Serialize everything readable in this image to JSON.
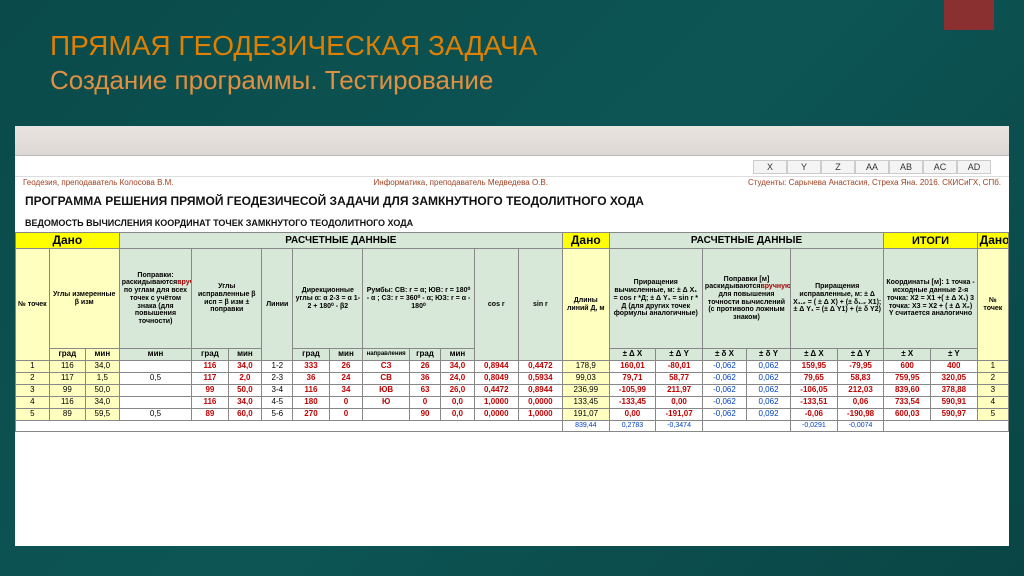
{
  "slide": {
    "title1": "ПРЯМАЯ ГЕОДЕЗИЧЕСКАЯ ЗАДАЧА",
    "title2": "Создание программы. Тестирование"
  },
  "cols": [
    "X",
    "Y",
    "Z",
    "AA",
    "AB",
    "AC",
    "AD"
  ],
  "credits": {
    "left": "Геодезия,  преподаватель Колосова В.М.",
    "mid": "Информатика,  преподаватель Медведева О.В.",
    "right": "Студенты: Сарычева Анастасия, Стреха Яна. 2016. СКИСиГХ, СПб."
  },
  "prog_title": "ПРОГРАММА  РЕШЕНИЯ ПРЯМОЙ ГЕОДЕЗИЧЕСОЙ ЗАДАЧИ ДЛЯ ЗАМКНУТНОГО ТЕОДОЛИТНОГО ХОДА",
  "sub_title": "ВЕДОМОСТЬ ВЫЧИСЛЕНИЯ КООРДИНАТ ТОЧЕК  ЗАМКНУТОГО ТЕОДОЛИТНОГО ХОДА",
  "head": {
    "dano": "Дано",
    "calc": "РАСЧЕТНЫЕ ДАННЫЕ",
    "itog": "ИТОГИ",
    "ugly_izm": "Углы измеренные β изм",
    "popravki": "Поправки: раскидываются",
    "popr_red": "вручную",
    "popr2": " по углам для всех точек с учётом знака (для повышения точности)",
    "ugly_ispr": "Углы исправленные β исп =  β изм ± поправки",
    "dir": "Дирекционные углы α: α 2-3 = α 1-2 + 180⁰ - β2",
    "rumb": "Румбы:\nСВ: r = α;\nЮВ: r = 180⁰ - α ;\nСЗ: r = 360⁰ - α;\nЮЗ: r = α - 180⁰",
    "cos": "cos r",
    "sin": "sin r",
    "dl": "Длины линий Д, м",
    "prir": "Приращения вычисленные, м:\n± Δ X₁ = cos r *Д;\n± Δ Y₁ = sin r * Д\n(для других точек формулы аналогичные)",
    "popr_m": "Поправки [м] раскидываются",
    "popr_m_red": "вручную",
    "popr_m2": " для повышения точности вычислений (с противопо ложным знаком)",
    "pr_ispr": "Приращения исправленные, м:\n± Δ X₁.₂ = ( ± Δ X) + (± δ₁.₂ X1);\n± Δ Y₁ = (± Δ Y1) + (± δ Y2)",
    "koord": "Координаты [м]:\n1 точка - исходные данные\n2-я точка:     X2 = X1 +( ± Δ X₁)     3 точка:     X3 = X2 + ( ± Δ X₂)     Y считается аналогично",
    "ntochek": "№ точек",
    "grad": "град",
    "min": "мин",
    "linii": "Линии",
    "napr": "направления",
    "r": "r",
    "dx": "± Δ X",
    "dy": "± Δ Y",
    "ddx": "± δ X",
    "ddy": "± δ Y",
    "px": "± X",
    "py": "± Y"
  },
  "rows": [
    {
      "n": "1",
      "g": "116",
      "m": "34,0",
      "p": "",
      "ig": "116",
      "im": "34,0",
      "l": "1-2",
      "ag": "333",
      "am": "26",
      "np": "СЗ",
      "rg": "26",
      "rm": "34,0",
      "cos": "0,8944",
      "sin": "0,4472",
      "d": "178,9",
      "dx": "160,01",
      "dy": "-80,01",
      "ddx": "-0,062",
      "ddy": "0,062",
      "pdx": "159,95",
      "pdy": "-79,95",
      "x": "600",
      "y": "400",
      "n2": "1"
    },
    {
      "n": "2",
      "g": "117",
      "m": "1,5",
      "p": "0,5",
      "ig": "117",
      "im": "2,0",
      "l": "2-3",
      "ag": "36",
      "am": "24",
      "np": "СВ",
      "rg": "36",
      "rm": "24,0",
      "cos": "0,8049",
      "sin": "0,5934",
      "d": "99,03",
      "dx": "79,71",
      "dy": "58,77",
      "ddx": "-0,062",
      "ddy": "0,062",
      "pdx": "79,65",
      "pdy": "58,83",
      "x": "759,95",
      "y": "320,05",
      "n2": "2"
    },
    {
      "n": "3",
      "g": "99",
      "m": "50,0",
      "p": "",
      "ig": "99",
      "im": "50,0",
      "l": "3-4",
      "ag": "116",
      "am": "34",
      "np": "ЮВ",
      "rg": "63",
      "rm": "26,0",
      "cos": "0,4472",
      "sin": "0,8944",
      "d": "236,99",
      "dx": "-105,99",
      "dy": "211,97",
      "ddx": "-0,062",
      "ddy": "0,062",
      "pdx": "-106,05",
      "pdy": "212,03",
      "x": "839,60",
      "y": "378,88",
      "n2": "3"
    },
    {
      "n": "4",
      "g": "116",
      "m": "34,0",
      "p": "",
      "ig": "116",
      "im": "34,0",
      "l": "4-5",
      "ag": "180",
      "am": "0",
      "np": "Ю",
      "rg": "0",
      "rm": "0,0",
      "cos": "1,0000",
      "sin": "0,0000",
      "d": "133,45",
      "dx": "-133,45",
      "dy": "0,00",
      "ddx": "-0,062",
      "ddy": "0,062",
      "pdx": "-133,51",
      "pdy": "0,06",
      "x": "733,54",
      "y": "590,91",
      "n2": "4"
    },
    {
      "n": "5",
      "g": "89",
      "m": "59,5",
      "p": "0,5",
      "ig": "89",
      "im": "60,0",
      "l": "5-6",
      "ag": "270",
      "am": "0",
      "np": "",
      "rg": "90",
      "rm": "0,0",
      "cos": "0,0000",
      "sin": "1,0000",
      "d": "191,07",
      "dx": "0,00",
      "dy": "-191,07",
      "ddx": "-0,062",
      "ddy": "0,092",
      "pdx": "-0,06",
      "pdy": "-190,98",
      "x": "600,03",
      "y": "590,97",
      "n2": "5"
    }
  ],
  "sums": {
    "d": "839,44",
    "dx": "0,2783",
    "dy": "-0,3474",
    "pdx": "-0,0291",
    "pdy": "-0,0074"
  }
}
